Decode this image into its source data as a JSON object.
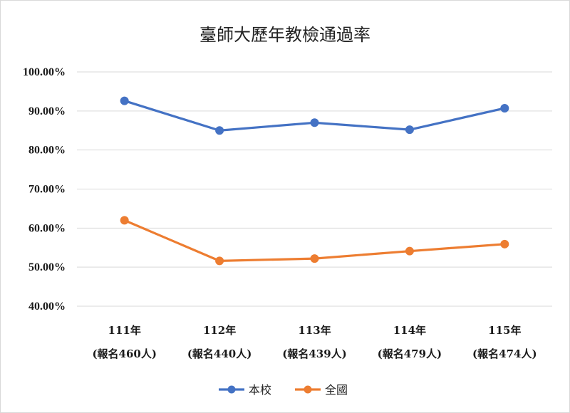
{
  "chart_data": {
    "type": "line",
    "title": "臺師大歷年教檢通過率",
    "categories": [
      [
        "111年",
        "(報名460人)"
      ],
      [
        "112年",
        "(報名440人)"
      ],
      [
        "113年",
        "(報名439人)"
      ],
      [
        "114年",
        "(報名479人)"
      ],
      [
        "115年",
        "(報名474人)"
      ]
    ],
    "ylim": [
      40,
      100
    ],
    "yticks": [
      40,
      50,
      60,
      70,
      80,
      90,
      100
    ],
    "ytick_labels": [
      "40.00%",
      "50.00%",
      "60.00%",
      "70.00%",
      "80.00%",
      "90.00%",
      "100.00%"
    ],
    "grid": true,
    "legend_position": "bottom",
    "series": [
      {
        "name": "本校",
        "color": "#4472C4",
        "values": [
          92.6,
          85.0,
          87.0,
          85.2,
          90.7
        ]
      },
      {
        "name": "全國",
        "color": "#ED7D31",
        "values": [
          62.0,
          51.6,
          52.2,
          54.1,
          55.9
        ]
      }
    ]
  }
}
